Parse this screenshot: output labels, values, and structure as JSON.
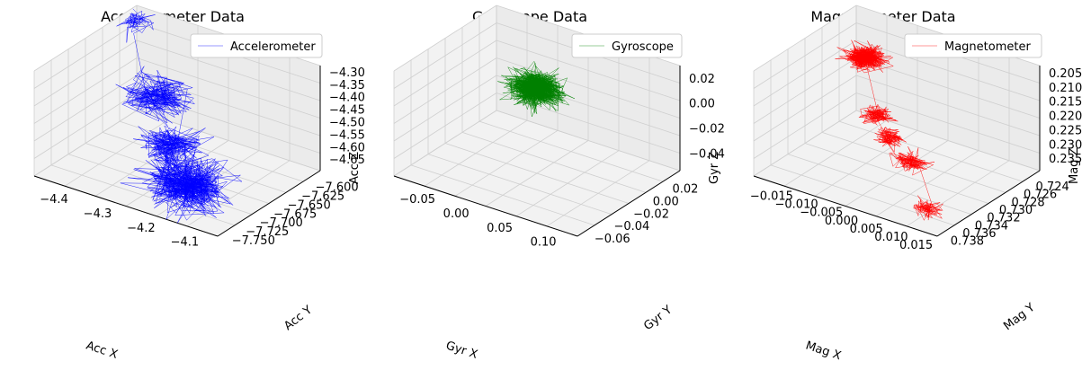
{
  "chart_data": [
    {
      "type": "line",
      "projection": "3d",
      "title": "Accelerometer Data",
      "series": [
        {
          "name": "Accelerometer",
          "color": "#0000ff"
        }
      ],
      "legend": "top-right",
      "grid": true,
      "xlabel": "Acc X",
      "ylabel": "Acc Y",
      "zlabel": "Acc Z",
      "x_ticks": [
        "−4.4",
        "−4.3",
        "−4.2",
        "−4.1"
      ],
      "y_ticks": [
        "−7.600",
        "−7.625",
        "−7.650",
        "−7.675",
        "−7.700",
        "−7.725",
        "−7.750"
      ],
      "z_ticks": [
        "−4.30",
        "−4.35",
        "−4.40",
        "−4.45",
        "−4.50",
        "−4.55",
        "−4.60",
        "−4.65"
      ],
      "xlim": [
        -4.44,
        -4.04
      ],
      "ylim": [
        -7.76,
        -7.59
      ],
      "zlim": [
        -4.67,
        -4.28
      ],
      "clusters": [
        {
          "x": -4.43,
          "y": -7.6,
          "z": -4.32,
          "spread": 0.02,
          "n": 60
        },
        {
          "x": -4.3,
          "y": -7.66,
          "z": -4.44,
          "spread": 0.03,
          "n": 220
        },
        {
          "x": -4.22,
          "y": -7.7,
          "z": -4.52,
          "spread": 0.03,
          "n": 200
        },
        {
          "x": -4.14,
          "y": -7.73,
          "z": -4.58,
          "spread": 0.04,
          "n": 500
        }
      ]
    },
    {
      "type": "line",
      "projection": "3d",
      "title": "Gyroscope Data",
      "series": [
        {
          "name": "Gyroscope",
          "color": "#008000"
        }
      ],
      "legend": "top-right",
      "grid": true,
      "xlabel": "Gyr X",
      "ylabel": "Gyr Y",
      "zlabel": "Gyr Z",
      "x_ticks": [
        "−0.05",
        "0.00",
        "0.05",
        "0.10"
      ],
      "y_ticks": [
        "0.02",
        "0.00",
        "−0.02",
        "−0.04",
        "−0.06"
      ],
      "z_ticks": [
        "0.02",
        "0.00",
        "−0.02",
        "−0.04"
      ],
      "xlim": [
        -0.08,
        0.12
      ],
      "ylim": [
        -0.07,
        0.035
      ],
      "zlim": [
        -0.055,
        0.03
      ],
      "clusters": [
        {
          "x": 0.0,
          "y": 0.0,
          "z": 0.0,
          "spread": 0.012,
          "n": 900
        }
      ]
    },
    {
      "type": "line",
      "projection": "3d",
      "title": "Magnetometer Data",
      "series": [
        {
          "name": "Magnetometer",
          "color": "#ff0000"
        }
      ],
      "legend": "top-right",
      "grid": true,
      "xlabel": "Mag X",
      "ylabel": "Mag Y",
      "zlabel": "Mag Z",
      "x_ticks": [
        "−0.015",
        "−0.010",
        "−0.005",
        "0.000",
        "0.005",
        "0.010",
        "0.015"
      ],
      "y_ticks": [
        "0.724",
        "0.726",
        "0.728",
        "0.730",
        "0.732",
        "0.734",
        "0.736",
        "0.738"
      ],
      "z_ticks": [
        "0.205",
        "0.210",
        "0.215",
        "0.220",
        "0.225",
        "0.230",
        "0.235"
      ],
      "xlim": [
        -0.017,
        0.017
      ],
      "ylim": [
        0.723,
        0.739
      ],
      "zlim": [
        0.202,
        0.239
      ],
      "clusters": [
        {
          "x": -0.013,
          "y": 0.737,
          "z": 0.226,
          "spread": 0.0015,
          "n": 500
        },
        {
          "x": -0.005,
          "y": 0.732,
          "z": 0.218,
          "spread": 0.0012,
          "n": 150
        },
        {
          "x": 0.0,
          "y": 0.73,
          "z": 0.216,
          "spread": 0.0012,
          "n": 120
        },
        {
          "x": 0.006,
          "y": 0.728,
          "z": 0.214,
          "spread": 0.0014,
          "n": 140
        },
        {
          "x": 0.014,
          "y": 0.724,
          "z": 0.208,
          "spread": 0.0012,
          "n": 90
        }
      ]
    }
  ]
}
